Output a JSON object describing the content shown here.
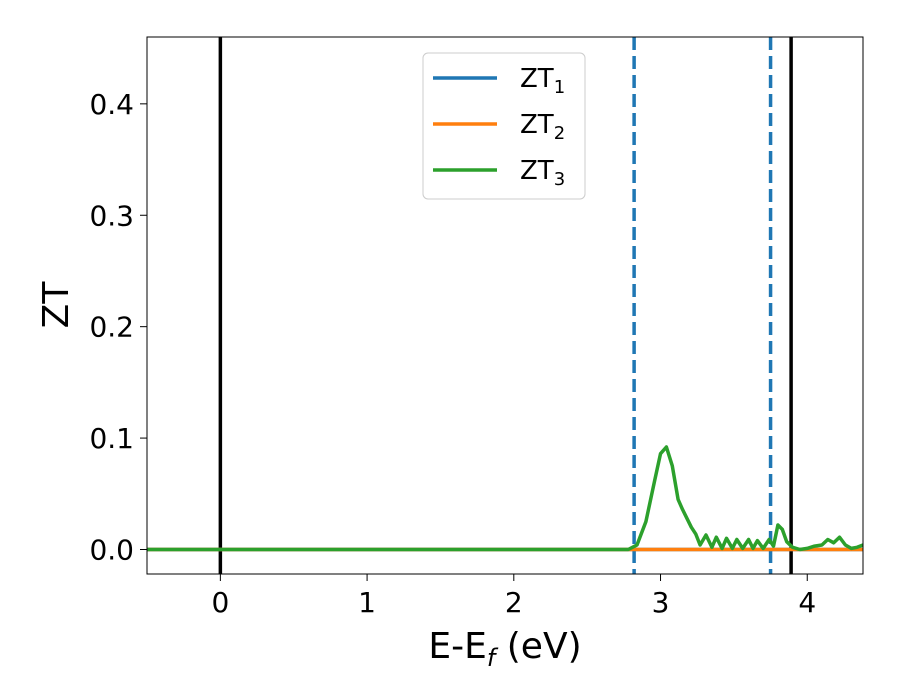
{
  "chart_data": {
    "type": "line",
    "xlabel": "E-E",
    "xlabel_sub": "f",
    "xlabel_unit": "(eV)",
    "ylabel": "ZT",
    "xlim": [
      -0.5,
      4.38
    ],
    "ylim": [
      -0.022,
      0.46
    ],
    "xticks": [
      0,
      1,
      2,
      3,
      4
    ],
    "xtick_labels": [
      "0",
      "1",
      "2",
      "3",
      "4"
    ],
    "yticks": [
      0.0,
      0.1,
      0.2,
      0.3,
      0.4
    ],
    "ytick_labels": [
      "0.0",
      "0.1",
      "0.2",
      "0.3",
      "0.4"
    ],
    "grid": false,
    "legend_position": "top-center",
    "series": [
      {
        "name": "ZT",
        "sub": "1",
        "color": "#1f77b4",
        "x": [
          -0.5,
          4.38
        ],
        "y": [
          0.0,
          0.0
        ]
      },
      {
        "name": "ZT",
        "sub": "2",
        "color": "#ff7f0e",
        "x": [
          -0.5,
          4.38
        ],
        "y": [
          0.0,
          0.0
        ]
      },
      {
        "name": "ZT",
        "sub": "3",
        "color": "#2ca02c",
        "x": [
          -0.5,
          2.78,
          2.84,
          2.9,
          2.96,
          3.0,
          3.04,
          3.08,
          3.12,
          3.15,
          3.18,
          3.21,
          3.24,
          3.27,
          3.31,
          3.35,
          3.38,
          3.42,
          3.45,
          3.49,
          3.52,
          3.56,
          3.6,
          3.63,
          3.66,
          3.7,
          3.74,
          3.77,
          3.8,
          3.83,
          3.86,
          3.9,
          3.95,
          4.0,
          4.05,
          4.1,
          4.14,
          4.18,
          4.22,
          4.26,
          4.3,
          4.34,
          4.38
        ],
        "y": [
          0.0,
          0.0,
          0.004,
          0.025,
          0.062,
          0.086,
          0.092,
          0.075,
          0.045,
          0.036,
          0.028,
          0.02,
          0.014,
          0.004,
          0.013,
          0.002,
          0.011,
          0.001,
          0.01,
          0.001,
          0.009,
          0.001,
          0.009,
          0.001,
          0.008,
          0.001,
          0.009,
          0.003,
          0.022,
          0.018,
          0.007,
          0.002,
          0.0,
          0.001,
          0.003,
          0.004,
          0.009,
          0.006,
          0.011,
          0.004,
          0.001,
          0.002,
          0.004
        ]
      }
    ],
    "vlines": [
      {
        "x": 0.0,
        "color": "#000000",
        "style": "solid"
      },
      {
        "x": 3.89,
        "color": "#000000",
        "style": "solid"
      },
      {
        "x": 2.82,
        "color": "#1f77b4",
        "style": "dashed"
      },
      {
        "x": 3.75,
        "color": "#1f77b4",
        "style": "dashed"
      }
    ]
  }
}
